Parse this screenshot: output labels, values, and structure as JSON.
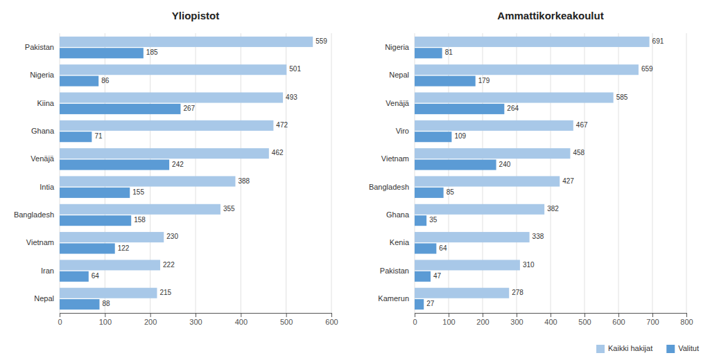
{
  "chart_data": [
    {
      "type": "bar",
      "orientation": "horizontal",
      "title": "Yliopistot",
      "categories": [
        "Pakistan",
        "Nigeria",
        "Kiina",
        "Ghana",
        "Venäjä",
        "Intia",
        "Bangladesh",
        "Vietnam",
        "Iran",
        "Nepal"
      ],
      "series": [
        {
          "name": "Kaikki hakijat",
          "color": "#a8c8e8",
          "values": [
            559,
            501,
            493,
            472,
            462,
            388,
            355,
            230,
            222,
            215
          ]
        },
        {
          "name": "Valitut",
          "color": "#5b9bd5",
          "values": [
            185,
            86,
            267,
            71,
            242,
            155,
            158,
            122,
            64,
            88
          ]
        }
      ],
      "xlim": [
        0,
        600
      ],
      "xticks": [
        0,
        100,
        200,
        300,
        400,
        500,
        600
      ],
      "grid": true,
      "data_labels": true
    },
    {
      "type": "bar",
      "orientation": "horizontal",
      "title": "Ammattikorkeakoulut",
      "categories": [
        "Nigeria",
        "Nepal",
        "Venäjä",
        "Viro",
        "Vietnam",
        "Bangladesh",
        "Ghana",
        "Kenia",
        "Pakistan",
        "Kamerun"
      ],
      "series": [
        {
          "name": "Kaikki hakijat",
          "color": "#a8c8e8",
          "values": [
            691,
            659,
            585,
            467,
            458,
            427,
            382,
            338,
            310,
            278
          ]
        },
        {
          "name": "Valitut",
          "color": "#5b9bd5",
          "values": [
            81,
            179,
            264,
            109,
            240,
            85,
            35,
            64,
            47,
            27
          ]
        }
      ],
      "xlim": [
        0,
        800
      ],
      "xticks": [
        0,
        100,
        200,
        300,
        400,
        500,
        600,
        700,
        800
      ],
      "grid": true,
      "data_labels": true,
      "legend": "lower right"
    }
  ]
}
